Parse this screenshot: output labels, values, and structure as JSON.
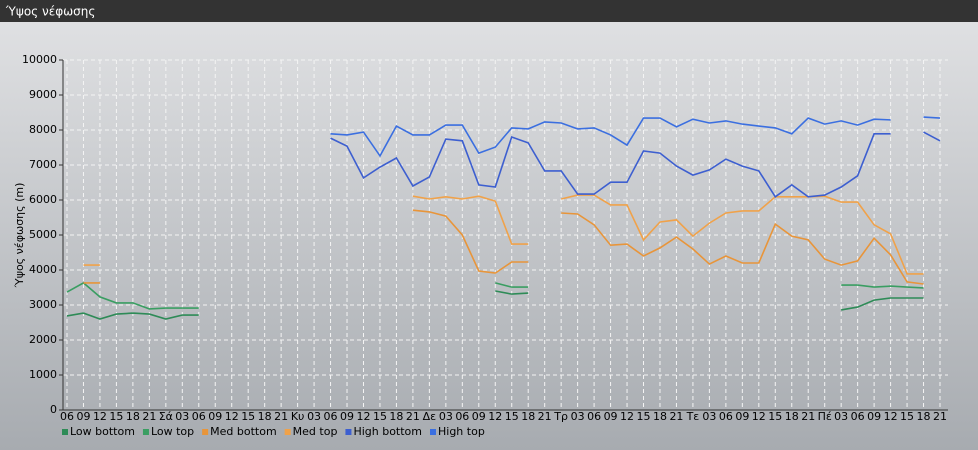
{
  "chart_data": {
    "type": "line",
    "title": "Ύψος νέφωσης",
    "y_label": "Ύψος νέφωσης (m)",
    "categories": [
      "06",
      "09",
      "12",
      "15",
      "18",
      "21",
      "Σά",
      "03",
      "06",
      "09",
      "12",
      "15",
      "18",
      "21",
      "Κυ",
      "03",
      "06",
      "09",
      "12",
      "15",
      "18",
      "21",
      "Δε",
      "03",
      "06",
      "09",
      "12",
      "15",
      "18",
      "21",
      "Τρ",
      "03",
      "06",
      "09",
      "12",
      "15",
      "18",
      "21",
      "Τε",
      "03",
      "06",
      "09",
      "12",
      "15",
      "18",
      "21",
      "Πέ",
      "03",
      "06",
      "09",
      "12",
      "15",
      "18",
      "21"
    ],
    "ylim": [
      0,
      10000
    ],
    "yticks": [
      0,
      1000,
      2000,
      3000,
      4000,
      5000,
      6000,
      7000,
      8000,
      9000,
      10000
    ],
    "grid": true,
    "series": [
      {
        "name": "Low bottom",
        "color": "#2e8b57",
        "values": [
          2690,
          2770,
          2600,
          2740,
          2770,
          2740,
          2600,
          2710,
          2710,
          null,
          null,
          null,
          null,
          null,
          null,
          null,
          null,
          null,
          null,
          null,
          null,
          null,
          null,
          null,
          null,
          null,
          3400,
          3310,
          3340,
          null,
          null,
          null,
          null,
          null,
          null,
          null,
          null,
          null,
          null,
          null,
          null,
          null,
          null,
          null,
          null,
          null,
          null,
          2860,
          2940,
          3140,
          3200,
          3200,
          3200,
          null
        ]
      },
      {
        "name": "Low top",
        "color": "#3a9e62",
        "values": [
          3370,
          3630,
          3230,
          3060,
          3060,
          2890,
          2910,
          2910,
          2910,
          null,
          null,
          null,
          null,
          null,
          null,
          null,
          null,
          null,
          null,
          null,
          null,
          null,
          null,
          null,
          null,
          null,
          3630,
          3510,
          3510,
          null,
          null,
          null,
          null,
          null,
          null,
          null,
          null,
          null,
          null,
          null,
          null,
          null,
          null,
          null,
          null,
          null,
          null,
          3570,
          3570,
          3510,
          3540,
          3510,
          3490,
          null
        ]
      },
      {
        "name": "Med bottom",
        "color": "#e8953a",
        "values": [
          null,
          3630,
          3630,
          null,
          null,
          null,
          null,
          null,
          null,
          null,
          null,
          null,
          null,
          null,
          null,
          null,
          null,
          null,
          null,
          null,
          null,
          5710,
          5660,
          5540,
          5000,
          3970,
          3910,
          4230,
          4230,
          null,
          5630,
          5600,
          5290,
          4710,
          4740,
          4400,
          4630,
          4940,
          4600,
          4170,
          4400,
          4200,
          4200,
          5310,
          4970,
          4860,
          4310,
          4140,
          4260,
          4910,
          4430,
          3660,
          3600,
          null
        ]
      },
      {
        "name": "Med top",
        "color": "#f0a24a",
        "values": [
          null,
          4140,
          4140,
          null,
          null,
          null,
          null,
          null,
          null,
          null,
          null,
          null,
          null,
          null,
          null,
          null,
          null,
          null,
          null,
          null,
          null,
          6110,
          6030,
          6090,
          6030,
          6110,
          5970,
          4740,
          4740,
          null,
          6030,
          6140,
          6140,
          5860,
          5860,
          4860,
          5370,
          5430,
          4970,
          5340,
          5630,
          5690,
          5690,
          6090,
          6090,
          6090,
          6110,
          5940,
          5940,
          5290,
          5030,
          3890,
          3890,
          null
        ]
      },
      {
        "name": "High bottom",
        "color": "#3d5fd0",
        "values": [
          null,
          null,
          null,
          null,
          null,
          null,
          null,
          null,
          null,
          null,
          null,
          null,
          null,
          null,
          null,
          null,
          7770,
          7540,
          6630,
          6940,
          7200,
          6400,
          6660,
          7740,
          7690,
          6430,
          6370,
          7800,
          7630,
          6830,
          6830,
          6170,
          6170,
          6510,
          6510,
          7400,
          7340,
          6970,
          6710,
          6860,
          7170,
          6970,
          6830,
          6090,
          6430,
          6090,
          6140,
          6370,
          6690,
          7890,
          7890,
          null,
          7940,
          7690
        ]
      },
      {
        "name": "High top",
        "color": "#3b6fe0",
        "values": [
          null,
          null,
          null,
          null,
          null,
          null,
          null,
          null,
          null,
          null,
          null,
          null,
          null,
          null,
          null,
          null,
          7890,
          7860,
          7940,
          7260,
          8110,
          7860,
          7860,
          8140,
          8140,
          7340,
          7510,
          8060,
          8030,
          8230,
          8200,
          8030,
          8060,
          7860,
          7570,
          8340,
          8340,
          8090,
          8310,
          8200,
          8260,
          8170,
          8110,
          8060,
          7890,
          8340,
          8170,
          8260,
          8140,
          8310,
          8290,
          null,
          8370,
          8340
        ]
      }
    ]
  }
}
